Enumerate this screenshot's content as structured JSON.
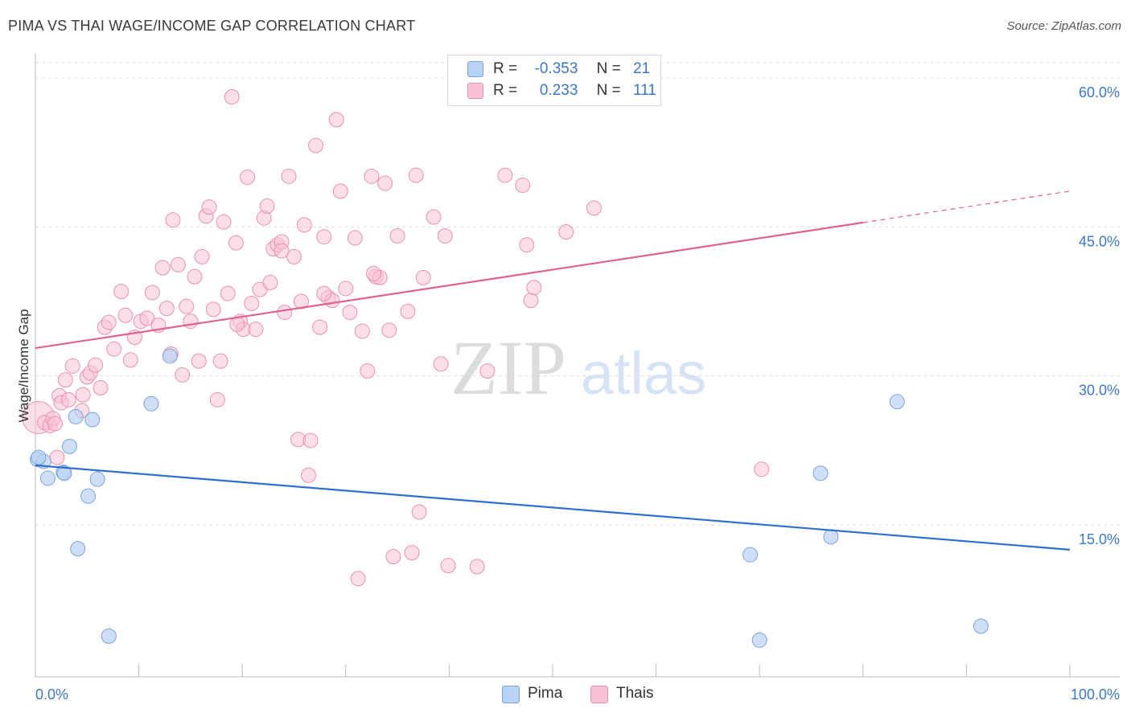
{
  "title": "PIMA VS THAI WAGE/INCOME GAP CORRELATION CHART",
  "source": "Source: ZipAtlas.com",
  "watermark": {
    "zip": "ZIP",
    "atlas": "atlas"
  },
  "legend_top": {
    "rows": [
      {
        "r_label": "R =",
        "r_value": "-0.353",
        "n_label": "N =",
        "n_value": "21"
      },
      {
        "r_label": "R =",
        "r_value": "0.233",
        "n_label": "N =",
        "n_value": "111"
      }
    ]
  },
  "legend_bottom": {
    "items": [
      "Pima",
      "Thais"
    ]
  },
  "colors": {
    "pima_fill": "#b9d2f3",
    "pima_stroke": "#7ba3dc",
    "pima_line": "#2f6fcf",
    "thai_fill": "#f9c2d4",
    "thai_stroke": "#e891ae",
    "thai_line": "#e0638f",
    "tick_label": "#3b78c4",
    "grid": "#dddddd"
  },
  "chart_data": {
    "type": "scatter",
    "title": "PIMA VS THAI WAGE/INCOME GAP CORRELATION CHART",
    "xlabel": "",
    "ylabel": "Wage/Income Gap",
    "xlim": [
      0,
      100
    ],
    "ylim": [
      0,
      62
    ],
    "x_tick_labels": [
      "0.0%",
      "100.0%"
    ],
    "y_ticks": [
      15,
      30,
      45,
      60
    ],
    "y_tick_labels": [
      "15.0%",
      "30.0%",
      "45.0%",
      "60.0%"
    ],
    "grid": true,
    "legend_position": "bottom",
    "series": [
      {
        "name": "Pima",
        "r": -0.353,
        "n": 21,
        "trend": {
          "x": [
            0,
            100
          ],
          "y": [
            21.0,
            12.5
          ],
          "dashed_from": null
        },
        "points": [
          [
            0.2,
            21.6
          ],
          [
            0.8,
            21.4
          ],
          [
            1.2,
            19.7
          ],
          [
            2.7,
            20.3
          ],
          [
            2.8,
            20.2
          ],
          [
            3.3,
            22.9
          ],
          [
            3.9,
            25.9
          ],
          [
            4.1,
            12.6
          ],
          [
            5.1,
            17.9
          ],
          [
            5.5,
            25.6
          ],
          [
            6.0,
            19.6
          ],
          [
            7.1,
            3.8
          ],
          [
            11.2,
            27.2
          ],
          [
            13.0,
            32.0
          ],
          [
            69.1,
            12.0
          ],
          [
            70.0,
            3.4
          ],
          [
            75.9,
            20.2
          ],
          [
            76.9,
            13.8
          ],
          [
            83.3,
            27.4
          ],
          [
            91.4,
            4.8
          ],
          [
            0.3,
            21.8
          ]
        ]
      },
      {
        "name": "Thais",
        "r": 0.233,
        "n": 111,
        "trend": {
          "x": [
            0,
            100
          ],
          "y": [
            32.8,
            48.6
          ],
          "dashed_from": 80
        },
        "points": [
          [
            0.3,
            25.8
          ],
          [
            0.9,
            25.3
          ],
          [
            1.4,
            25.0
          ],
          [
            1.7,
            25.7
          ],
          [
            1.9,
            25.2
          ],
          [
            2.1,
            21.8
          ],
          [
            2.3,
            28.0
          ],
          [
            2.5,
            27.3
          ],
          [
            2.9,
            29.6
          ],
          [
            3.2,
            27.6
          ],
          [
            3.6,
            31.0
          ],
          [
            4.5,
            26.5
          ],
          [
            4.6,
            28.1
          ],
          [
            5.0,
            29.9
          ],
          [
            5.3,
            30.3
          ],
          [
            5.8,
            31.1
          ],
          [
            6.3,
            28.8
          ],
          [
            6.7,
            34.9
          ],
          [
            7.1,
            35.4
          ],
          [
            7.6,
            32.7
          ],
          [
            8.3,
            38.5
          ],
          [
            8.7,
            36.1
          ],
          [
            9.2,
            31.6
          ],
          [
            9.6,
            33.9
          ],
          [
            10.2,
            35.5
          ],
          [
            10.8,
            35.8
          ],
          [
            11.3,
            38.4
          ],
          [
            11.9,
            35.1
          ],
          [
            12.3,
            40.9
          ],
          [
            12.7,
            36.8
          ],
          [
            13.1,
            32.2
          ],
          [
            13.3,
            45.7
          ],
          [
            13.8,
            41.2
          ],
          [
            14.2,
            30.1
          ],
          [
            14.6,
            37.0
          ],
          [
            15.0,
            35.5
          ],
          [
            15.4,
            40.0
          ],
          [
            15.8,
            31.5
          ],
          [
            16.1,
            42.0
          ],
          [
            16.5,
            46.1
          ],
          [
            16.8,
            47.0
          ],
          [
            17.2,
            36.7
          ],
          [
            17.6,
            27.6
          ],
          [
            17.9,
            31.5
          ],
          [
            18.2,
            45.5
          ],
          [
            18.6,
            38.3
          ],
          [
            19.0,
            58.1
          ],
          [
            19.4,
            43.4
          ],
          [
            19.8,
            35.5
          ],
          [
            20.1,
            34.7
          ],
          [
            20.5,
            50.0
          ],
          [
            20.9,
            37.3
          ],
          [
            21.3,
            34.7
          ],
          [
            21.7,
            38.7
          ],
          [
            22.1,
            45.9
          ],
          [
            22.4,
            47.1
          ],
          [
            22.7,
            39.4
          ],
          [
            23.0,
            42.8
          ],
          [
            23.4,
            43.2
          ],
          [
            23.8,
            43.5
          ],
          [
            24.1,
            36.4
          ],
          [
            24.5,
            50.1
          ],
          [
            25.0,
            42.0
          ],
          [
            25.4,
            23.6
          ],
          [
            25.7,
            37.5
          ],
          [
            26.0,
            45.2
          ],
          [
            26.4,
            20.0
          ],
          [
            27.1,
            53.2
          ],
          [
            27.5,
            34.9
          ],
          [
            27.9,
            44.0
          ],
          [
            28.3,
            37.9
          ],
          [
            28.7,
            37.6
          ],
          [
            29.1,
            55.8
          ],
          [
            29.5,
            48.6
          ],
          [
            30.4,
            36.4
          ],
          [
            30.0,
            38.8
          ],
          [
            30.9,
            43.9
          ],
          [
            31.2,
            9.6
          ],
          [
            31.6,
            34.5
          ],
          [
            32.1,
            30.5
          ],
          [
            32.5,
            50.1
          ],
          [
            32.9,
            40.0
          ],
          [
            33.3,
            39.9
          ],
          [
            33.8,
            49.4
          ],
          [
            34.2,
            34.6
          ],
          [
            34.6,
            11.8
          ],
          [
            35.0,
            44.1
          ],
          [
            36.0,
            36.5
          ],
          [
            36.4,
            12.2
          ],
          [
            36.8,
            50.2
          ],
          [
            37.1,
            16.3
          ],
          [
            37.5,
            39.9
          ],
          [
            38.5,
            46.0
          ],
          [
            39.2,
            31.2
          ],
          [
            39.6,
            44.1
          ],
          [
            39.9,
            10.9
          ],
          [
            42.7,
            10.8
          ],
          [
            43.7,
            30.5
          ],
          [
            45.4,
            50.2
          ],
          [
            47.1,
            49.2
          ],
          [
            47.5,
            43.2
          ],
          [
            47.9,
            37.6
          ],
          [
            48.2,
            38.9
          ],
          [
            51.3,
            44.5
          ],
          [
            54.0,
            46.9
          ],
          [
            70.2,
            20.6
          ],
          [
            26.6,
            23.5
          ],
          [
            23.8,
            42.6
          ],
          [
            27.9,
            38.3
          ],
          [
            32.7,
            40.3
          ],
          [
            19.5,
            35.2
          ]
        ]
      }
    ]
  }
}
